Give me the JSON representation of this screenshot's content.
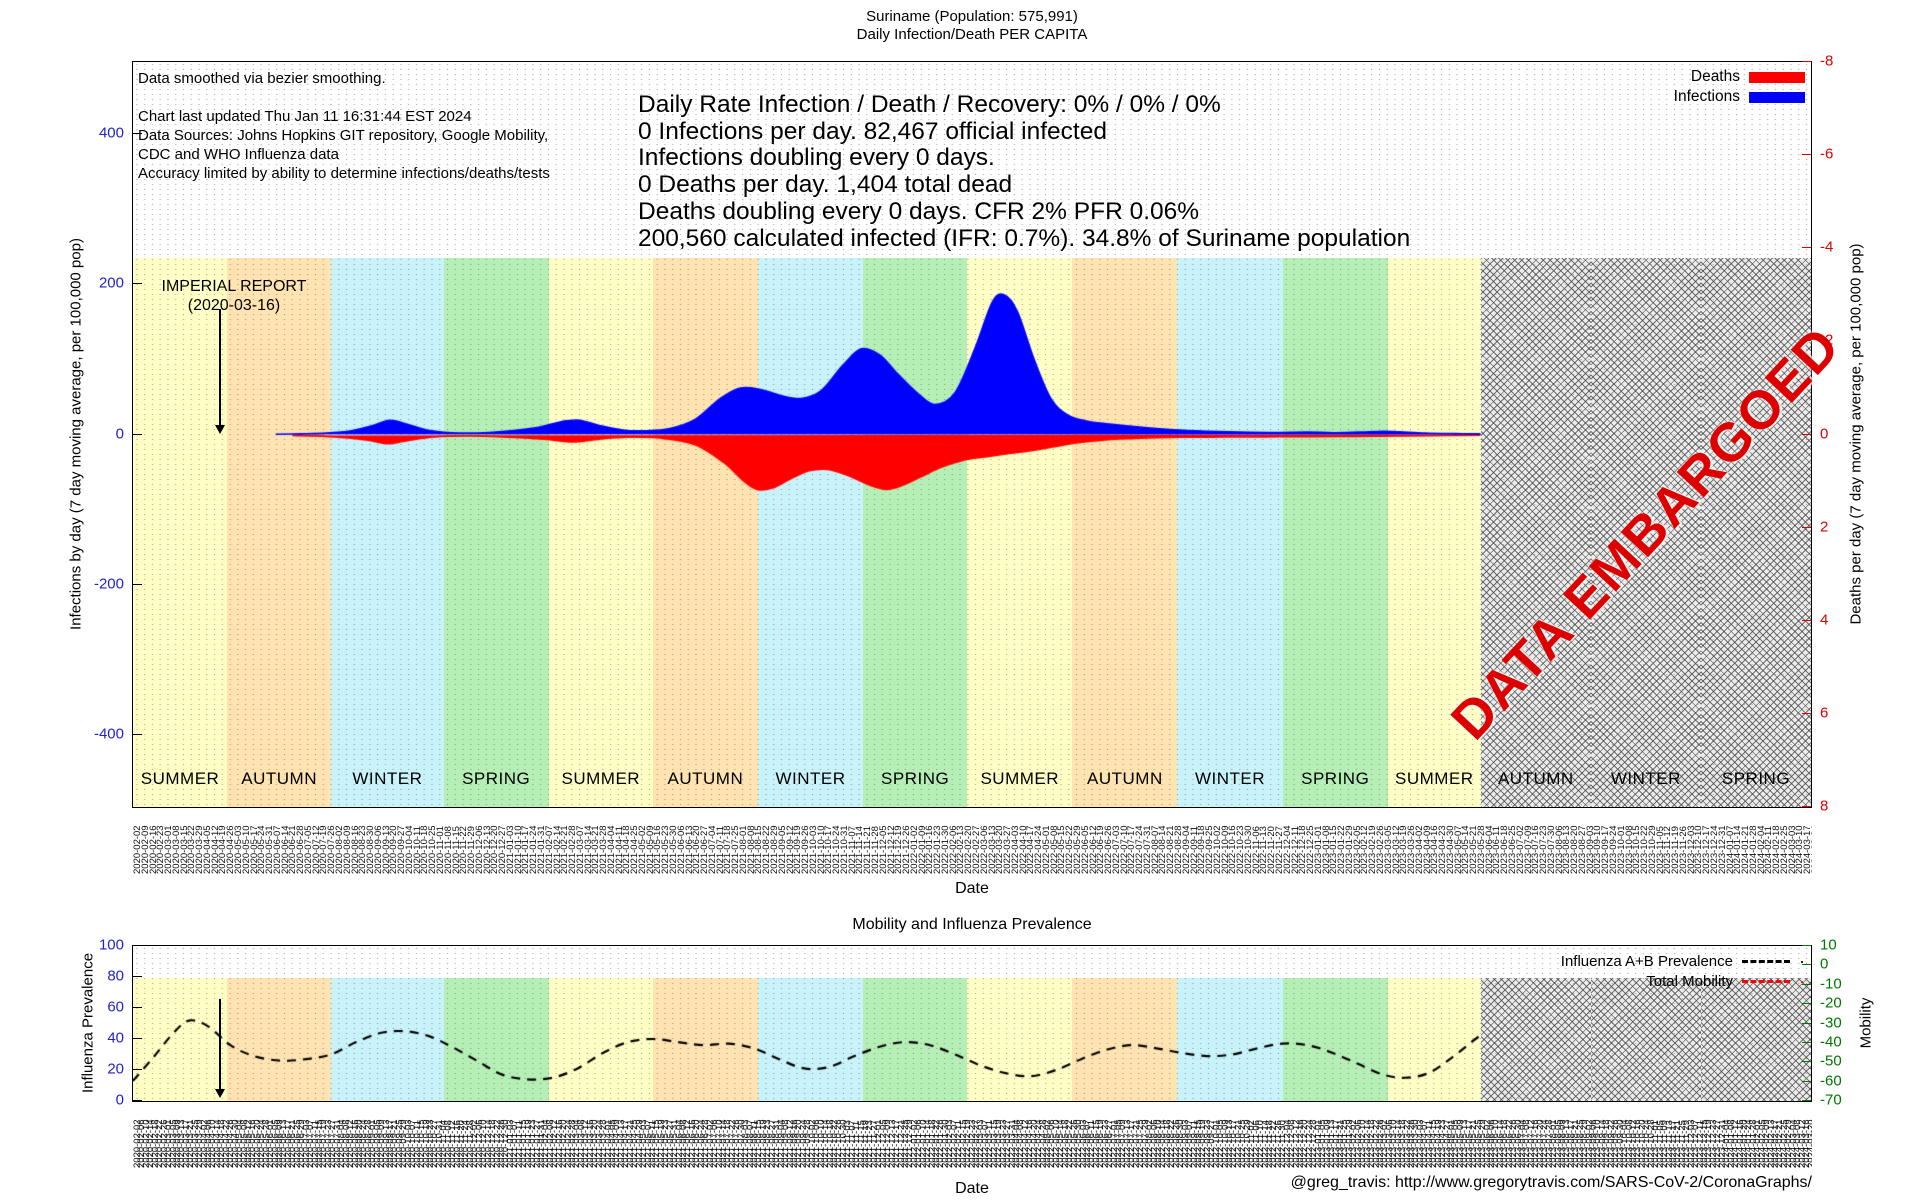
{
  "colors": {
    "deaths": "#ff0000",
    "infections": "#0000ff",
    "summer": "#ffffc5",
    "autumn": "#ffe3b0",
    "winter": "#c8f3fb",
    "spring": "#b5efb5",
    "axis_left": "#2222cc",
    "axis_right": "#dd0000",
    "axis_mobility": "#007700",
    "embargo_text": "#dd0000",
    "influenza_line": "#000000"
  },
  "footer": {
    "credit": "@greg_travis: http://www.gregorytravis.com/SARS-CoV-2/CoronaGraphs/"
  },
  "chart_data": [
    {
      "type": "area",
      "title": "Suriname (Population: 575,991)",
      "subtitle": "Daily Infection/Death PER CAPITA",
      "notes": [
        "Data smoothed via bezier smoothing.",
        "",
        "Chart last updated Thu Jan 11 16:31:44 EST 2024",
        "Data Sources: Johns Hopkins GIT repository, Google Mobility,",
        "CDC and WHO Influenza data",
        "Accuracy limited by ability to determine infections/deaths/tests"
      ],
      "stats": [
        "Daily Rate Infection / Death / Recovery: 0% / 0% / 0%",
        "0 Infections per day.  82,467 official infected",
        "Infections doubling every 0 days.",
        "0 Deaths per day.  1,404 total dead",
        "Deaths doubling every 0 days.  CFR 2%  PFR 0.06%",
        "200,560 calculated infected (IFR: 0.7%).  34.8% of Suriname population"
      ],
      "legend": [
        {
          "label": "Deaths",
          "color": "#ff0000"
        },
        {
          "label": "Infections",
          "color": "#0000ff"
        }
      ],
      "annotation": {
        "line1": "IMPERIAL REPORT",
        "line2": "(2020-03-16)",
        "x": 0.0525
      },
      "embargo": {
        "label": "DATA EMBARGOED",
        "start": 0.8032
      },
      "left_axis": {
        "title": "Infections by day (7 day moving average, per 100,000 pop)",
        "ticks": [
          400,
          200,
          0,
          -200,
          -400
        ],
        "min": -496,
        "max": 496
      },
      "right_axis": {
        "title": "Deaths per day (7 day moving average, per 100,000 pop)",
        "ticks": [
          -8,
          -6,
          -4,
          -2,
          0,
          2,
          4,
          6,
          8
        ],
        "min": -8,
        "max": 8,
        "inverted": true
      },
      "x_axis": {
        "label": "Date",
        "start": "2020-02-02",
        "end": "2024-03-24",
        "tick_interval_days": 7
      },
      "seasons": [
        {
          "label": "SUMMER",
          "type": "summer",
          "x0": 0.0,
          "x1": 0.0561
        },
        {
          "label": "AUTUMN",
          "type": "autumn",
          "x0": 0.0561,
          "x1": 0.1181
        },
        {
          "label": "WINTER",
          "type": "winter",
          "x0": 0.1181,
          "x1": 0.1851
        },
        {
          "label": "SPRING",
          "type": "spring",
          "x0": 0.1851,
          "x1": 0.2478
        },
        {
          "label": "SUMMER",
          "type": "summer",
          "x0": 0.2478,
          "x1": 0.3098
        },
        {
          "label": "AUTUMN",
          "type": "autumn",
          "x0": 0.3098,
          "x1": 0.3724
        },
        {
          "label": "WINTER",
          "type": "winter",
          "x0": 0.3724,
          "x1": 0.4351
        },
        {
          "label": "SPRING",
          "type": "spring",
          "x0": 0.4351,
          "x1": 0.4971
        },
        {
          "label": "SUMMER",
          "type": "summer",
          "x0": 0.4971,
          "x1": 0.5598
        },
        {
          "label": "AUTUMN",
          "type": "autumn",
          "x0": 0.5598,
          "x1": 0.6224
        },
        {
          "label": "WINTER",
          "type": "winter",
          "x0": 0.6224,
          "x1": 0.6851
        },
        {
          "label": "SPRING",
          "type": "spring",
          "x0": 0.6851,
          "x1": 0.7478
        },
        {
          "label": "SUMMER",
          "type": "summer",
          "x0": 0.7478,
          "x1": 0.8032
        },
        {
          "label": "AUTUMN",
          "type": "embargo",
          "x0": 0.8032,
          "x1": 0.8688
        },
        {
          "label": "WINTER",
          "type": "embargo",
          "x0": 0.8688,
          "x1": 0.9344
        },
        {
          "label": "SPRING",
          "type": "embargo",
          "x0": 0.9344,
          "x1": 1.0
        }
      ],
      "series": [
        {
          "name": "Infections",
          "axis": "left",
          "units": "infections per day per 100,000 pop",
          "points": [
            [
              0.085,
              0.2
            ],
            [
              0.1,
              0.4
            ],
            [
              0.115,
              0.9
            ],
            [
              0.13,
              2.5
            ],
            [
              0.143,
              6
            ],
            [
              0.153,
              9.5
            ],
            [
              0.163,
              7
            ],
            [
              0.175,
              3
            ],
            [
              0.19,
              1.2
            ],
            [
              0.205,
              1
            ],
            [
              0.22,
              2
            ],
            [
              0.24,
              4.5
            ],
            [
              0.255,
              8.5
            ],
            [
              0.266,
              9.5
            ],
            [
              0.278,
              6
            ],
            [
              0.292,
              3
            ],
            [
              0.305,
              2.5
            ],
            [
              0.32,
              4
            ],
            [
              0.335,
              10
            ],
            [
              0.35,
              24
            ],
            [
              0.362,
              31
            ],
            [
              0.374,
              30
            ],
            [
              0.386,
              26
            ],
            [
              0.398,
              24
            ],
            [
              0.41,
              29
            ],
            [
              0.423,
              46
            ],
            [
              0.434,
              57
            ],
            [
              0.445,
              53
            ],
            [
              0.456,
              40
            ],
            [
              0.468,
              27
            ],
            [
              0.478,
              20
            ],
            [
              0.49,
              28
            ],
            [
              0.502,
              58
            ],
            [
              0.512,
              88
            ],
            [
              0.519,
              93
            ],
            [
              0.527,
              82
            ],
            [
              0.537,
              50
            ],
            [
              0.547,
              24
            ],
            [
              0.557,
              13
            ],
            [
              0.568,
              9
            ],
            [
              0.582,
              7
            ],
            [
              0.6,
              5
            ],
            [
              0.62,
              3.2
            ],
            [
              0.64,
              2.2
            ],
            [
              0.66,
              1.6
            ],
            [
              0.68,
              1.3
            ],
            [
              0.7,
              1.6
            ],
            [
              0.715,
              1.2
            ],
            [
              0.73,
              1.6
            ],
            [
              0.745,
              2.2
            ],
            [
              0.755,
              1.8
            ],
            [
              0.77,
              1.0
            ],
            [
              0.788,
              0.6
            ],
            [
              0.803,
              0.4
            ]
          ]
        },
        {
          "name": "Deaths",
          "axis": "right",
          "units": "deaths per day per 100,000 pop",
          "points": [
            [
              0.095,
              0.02
            ],
            [
              0.12,
              0.05
            ],
            [
              0.14,
              0.12
            ],
            [
              0.152,
              0.2
            ],
            [
              0.165,
              0.12
            ],
            [
              0.18,
              0.05
            ],
            [
              0.2,
              0.03
            ],
            [
              0.22,
              0.05
            ],
            [
              0.245,
              0.1
            ],
            [
              0.262,
              0.16
            ],
            [
              0.278,
              0.1
            ],
            [
              0.295,
              0.06
            ],
            [
              0.315,
              0.08
            ],
            [
              0.335,
              0.22
            ],
            [
              0.352,
              0.6
            ],
            [
              0.364,
              1.0
            ],
            [
              0.372,
              1.18
            ],
            [
              0.381,
              1.15
            ],
            [
              0.392,
              0.95
            ],
            [
              0.403,
              0.78
            ],
            [
              0.414,
              0.75
            ],
            [
              0.426,
              0.88
            ],
            [
              0.44,
              1.1
            ],
            [
              0.449,
              1.18
            ],
            [
              0.458,
              1.1
            ],
            [
              0.47,
              0.9
            ],
            [
              0.482,
              0.7
            ],
            [
              0.495,
              0.55
            ],
            [
              0.508,
              0.48
            ],
            [
              0.52,
              0.42
            ],
            [
              0.533,
              0.36
            ],
            [
              0.548,
              0.27
            ],
            [
              0.562,
              0.18
            ],
            [
              0.578,
              0.12
            ],
            [
              0.6,
              0.08
            ],
            [
              0.625,
              0.06
            ],
            [
              0.65,
              0.055
            ],
            [
              0.675,
              0.05
            ],
            [
              0.7,
              0.045
            ],
            [
              0.73,
              0.04
            ],
            [
              0.76,
              0.03
            ],
            [
              0.785,
              0.02
            ],
            [
              0.803,
              0.015
            ]
          ]
        }
      ]
    },
    {
      "type": "line",
      "title": "Mobility and Influenza Prevalence",
      "legend": [
        {
          "label": "Influenza A+B Prevalence",
          "color": "#000000",
          "style": "dashed"
        },
        {
          "label": "Total Mobility",
          "color": "#ff0000",
          "style": "dashed"
        }
      ],
      "left_axis": {
        "title": "Influenza Prevalence",
        "ticks": [
          0,
          20,
          40,
          60,
          80,
          100
        ],
        "min": 0,
        "max": 100
      },
      "right_axis": {
        "title": "Mobility",
        "ticks": [
          10,
          0,
          -10,
          -20,
          -30,
          -40,
          -50,
          -60,
          -70
        ],
        "min": -70,
        "max": 10
      },
      "x_axis": {
        "label": "Date",
        "start": "2020-02-02",
        "end": "2024-03-24",
        "tick_interval_days": 4
      },
      "series": [
        {
          "name": "Influenza A+B Prevalence",
          "axis": "left",
          "points": [
            [
              0.0,
              13
            ],
            [
              0.012,
              28
            ],
            [
              0.025,
              45
            ],
            [
              0.034,
              52
            ],
            [
              0.045,
              48
            ],
            [
              0.058,
              36
            ],
            [
              0.072,
              29
            ],
            [
              0.088,
              26
            ],
            [
              0.103,
              27
            ],
            [
              0.118,
              30
            ],
            [
              0.133,
              38
            ],
            [
              0.148,
              44
            ],
            [
              0.162,
              45
            ],
            [
              0.176,
              42
            ],
            [
              0.19,
              35
            ],
            [
              0.205,
              26
            ],
            [
              0.22,
              17
            ],
            [
              0.235,
              14
            ],
            [
              0.25,
              15
            ],
            [
              0.265,
              21
            ],
            [
              0.28,
              31
            ],
            [
              0.295,
              38
            ],
            [
              0.31,
              40
            ],
            [
              0.325,
              38
            ],
            [
              0.34,
              36
            ],
            [
              0.355,
              37
            ],
            [
              0.37,
              34
            ],
            [
              0.385,
              27
            ],
            [
              0.4,
              21
            ],
            [
              0.415,
              22
            ],
            [
              0.43,
              29
            ],
            [
              0.445,
              35
            ],
            [
              0.46,
              38
            ],
            [
              0.475,
              36
            ],
            [
              0.49,
              30
            ],
            [
              0.505,
              23
            ],
            [
              0.52,
              18
            ],
            [
              0.535,
              16
            ],
            [
              0.55,
              20
            ],
            [
              0.565,
              27
            ],
            [
              0.58,
              33
            ],
            [
              0.595,
              36
            ],
            [
              0.61,
              34
            ],
            [
              0.625,
              31
            ],
            [
              0.64,
              29
            ],
            [
              0.655,
              30
            ],
            [
              0.67,
              34
            ],
            [
              0.685,
              37
            ],
            [
              0.7,
              36
            ],
            [
              0.715,
              31
            ],
            [
              0.73,
              24
            ],
            [
              0.745,
              17
            ],
            [
              0.758,
              15
            ],
            [
              0.772,
              18
            ],
            [
              0.786,
              28
            ],
            [
              0.8,
              40
            ],
            [
              0.803,
              42
            ]
          ]
        },
        {
          "name": "Total Mobility",
          "axis": "right",
          "points": []
        }
      ]
    }
  ]
}
